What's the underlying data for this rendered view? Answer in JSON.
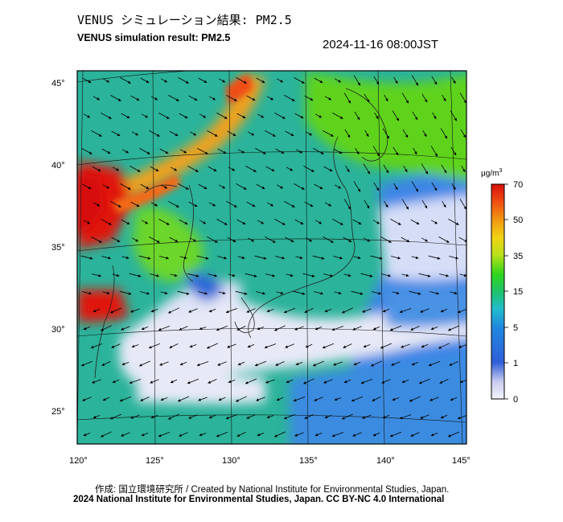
{
  "title_jp": "VENUS シミュレーション結果: PM2.5",
  "title_en": "VENUS simulation result: PM2.5",
  "timestamp": "2024-11-16 08:00JST",
  "map": {
    "lon_labels": [
      "120°",
      "125°",
      "130°",
      "135°",
      "140°",
      "145°"
    ],
    "lat_labels": [
      "45°",
      "40°",
      "35°",
      "30°",
      "25°"
    ]
  },
  "colorbar": {
    "unit_prefix": "μg/m",
    "unit_sup": "3",
    "tick_labels": [
      "70",
      "50",
      "35",
      "15",
      "5",
      "1",
      "0"
    ]
  },
  "colors": {
    "very_high": "#e0160c",
    "high": "#f2a11c",
    "medium": "#5fd31f",
    "low": "#23b3a0",
    "very_low": "#3c86e6",
    "clean": "#e7e9f6"
  },
  "credit_line1": "作成: 国立環境研究所 / Created by National Institute for Environmental Studies, Japan.",
  "credit_line2": "2024 National Institute for Environmental Studies, Japan. CC BY-NC 4.0 International"
}
